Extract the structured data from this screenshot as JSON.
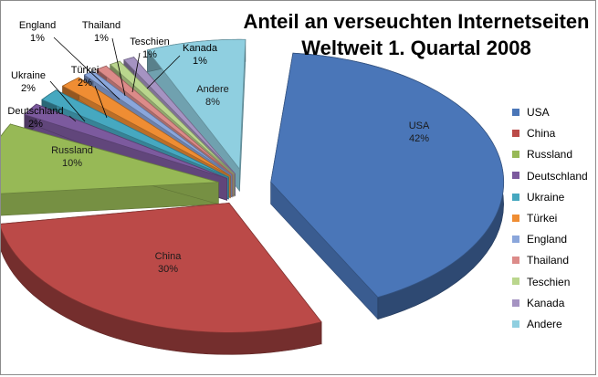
{
  "chart_data": {
    "type": "pie",
    "title": [
      "Anteil an verseuchten Internetseiten",
      "Weltweit  1. Quartal 2008"
    ],
    "legend_position": "right",
    "exploded": true,
    "style": "3d",
    "slices": [
      {
        "name": "USA",
        "value": 42,
        "label": "42%",
        "color": "#4a76b8"
      },
      {
        "name": "China",
        "value": 30,
        "label": "30%",
        "color": "#bb4a48"
      },
      {
        "name": "Russland",
        "value": 10,
        "label": "10%",
        "color": "#97b956"
      },
      {
        "name": "Deutschland",
        "value": 2,
        "label": "2%",
        "color": "#7c5a9e"
      },
      {
        "name": "Ukraine",
        "value": 2,
        "label": "2%",
        "color": "#46a8c0"
      },
      {
        "name": "Türkei",
        "value": 2,
        "label": "2%",
        "color": "#ef8d33"
      },
      {
        "name": "England",
        "value": 1,
        "label": "1%",
        "color": "#8aa6db"
      },
      {
        "name": "Thailand",
        "value": 1,
        "label": "1%",
        "color": "#dc8b89"
      },
      {
        "name": "Teschien",
        "value": 1,
        "label": "1%",
        "color": "#bad68d"
      },
      {
        "name": "Kanada",
        "value": 1,
        "label": "1%",
        "color": "#a593c2"
      },
      {
        "name": "Andere",
        "value": 8,
        "label": "8%",
        "color": "#8fcfe0"
      }
    ]
  }
}
